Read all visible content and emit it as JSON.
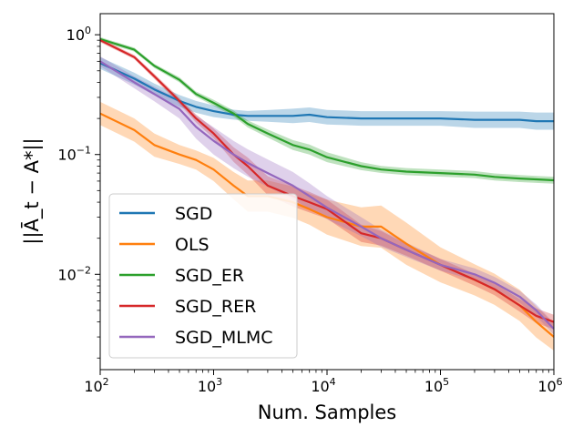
{
  "chart_data": {
    "type": "line",
    "xscale": "log",
    "yscale": "log",
    "xlim": [
      100,
      1000000
    ],
    "ylim": [
      0.0016,
      1.5
    ],
    "xlabel": "Num. Samples",
    "ylabel": "||Ā_t − A*||",
    "x_ticks": [
      {
        "value": 100,
        "base": "10",
        "exp": "2"
      },
      {
        "value": 1000,
        "base": "10",
        "exp": "3"
      },
      {
        "value": 10000,
        "base": "10",
        "exp": "4"
      },
      {
        "value": 100000,
        "base": "10",
        "exp": "5"
      },
      {
        "value": 1000000,
        "base": "10",
        "exp": "6"
      }
    ],
    "y_ticks": [
      {
        "value": 1,
        "base": "10",
        "exp": "0"
      },
      {
        "value": 0.1,
        "base": "10",
        "exp": "−1"
      },
      {
        "value": 0.01,
        "base": "10",
        "exp": "−2"
      }
    ],
    "grid": false,
    "legend_position": "lower-left",
    "x": [
      100,
      200,
      300,
      500,
      700,
      1000,
      1500,
      2000,
      3000,
      5000,
      7000,
      10000,
      20000,
      30000,
      50000,
      100000,
      200000,
      300000,
      500000,
      700000,
      1000000
    ],
    "series": [
      {
        "name": "SGD",
        "color": "#1f77b4",
        "values": [
          0.58,
          0.43,
          0.35,
          0.28,
          0.25,
          0.23,
          0.215,
          0.21,
          0.21,
          0.21,
          0.215,
          0.205,
          0.2,
          0.2,
          0.2,
          0.2,
          0.195,
          0.195,
          0.195,
          0.19,
          0.19
        ],
        "band_ratio": [
          1.12,
          1.12,
          1.12,
          1.12,
          1.12,
          1.12,
          1.1,
          1.1,
          1.12,
          1.15,
          1.15,
          1.15,
          1.15,
          1.15,
          1.15,
          1.15,
          1.17,
          1.17,
          1.17,
          1.18,
          1.18
        ]
      },
      {
        "name": "OLS",
        "color": "#ff7f0e",
        "values": [
          0.22,
          0.16,
          0.12,
          0.1,
          0.09,
          0.075,
          0.055,
          0.045,
          0.045,
          0.04,
          0.035,
          0.03,
          0.025,
          0.025,
          0.018,
          0.012,
          0.009,
          0.0075,
          0.0055,
          0.004,
          0.003
        ],
        "band_ratio": [
          1.25,
          1.25,
          1.25,
          1.2,
          1.2,
          1.25,
          1.3,
          1.35,
          1.35,
          1.35,
          1.35,
          1.4,
          1.45,
          1.5,
          1.5,
          1.4,
          1.35,
          1.35,
          1.35,
          1.35,
          1.3
        ]
      },
      {
        "name": "SGD_ER",
        "color": "#2ca02c",
        "values": [
          0.92,
          0.75,
          0.55,
          0.42,
          0.32,
          0.27,
          0.22,
          0.18,
          0.15,
          0.12,
          0.11,
          0.095,
          0.08,
          0.075,
          0.072,
          0.07,
          0.068,
          0.065,
          0.063,
          0.062,
          0.061
        ],
        "band_ratio": [
          1.04,
          1.04,
          1.04,
          1.05,
          1.05,
          1.06,
          1.06,
          1.07,
          1.08,
          1.1,
          1.1,
          1.1,
          1.08,
          1.07,
          1.07,
          1.07,
          1.07,
          1.07,
          1.07,
          1.07,
          1.07
        ]
      },
      {
        "name": "SGD_RER",
        "color": "#d62728",
        "values": [
          0.9,
          0.65,
          0.45,
          0.28,
          0.2,
          0.15,
          0.1,
          0.08,
          0.055,
          0.045,
          0.04,
          0.035,
          0.022,
          0.02,
          0.016,
          0.012,
          0.009,
          0.0075,
          0.0055,
          0.0045,
          0.004
        ],
        "band_ratio": [
          1.04,
          1.04,
          1.05,
          1.06,
          1.08,
          1.1,
          1.15,
          1.18,
          1.2,
          1.22,
          1.22,
          1.2,
          1.18,
          1.15,
          1.12,
          1.12,
          1.12,
          1.12,
          1.13,
          1.15,
          1.15
        ]
      },
      {
        "name": "SGD_MLMC",
        "color": "#9467bd",
        "values": [
          0.6,
          0.4,
          0.32,
          0.24,
          0.17,
          0.13,
          0.1,
          0.085,
          0.07,
          0.055,
          0.045,
          0.036,
          0.025,
          0.02,
          0.016,
          0.012,
          0.01,
          0.0085,
          0.0065,
          0.005,
          0.0035
        ],
        "band_ratio": [
          1.1,
          1.12,
          1.15,
          1.2,
          1.25,
          1.3,
          1.3,
          1.3,
          1.3,
          1.3,
          1.28,
          1.25,
          1.2,
          1.18,
          1.15,
          1.12,
          1.12,
          1.12,
          1.12,
          1.12,
          1.12
        ]
      }
    ]
  }
}
